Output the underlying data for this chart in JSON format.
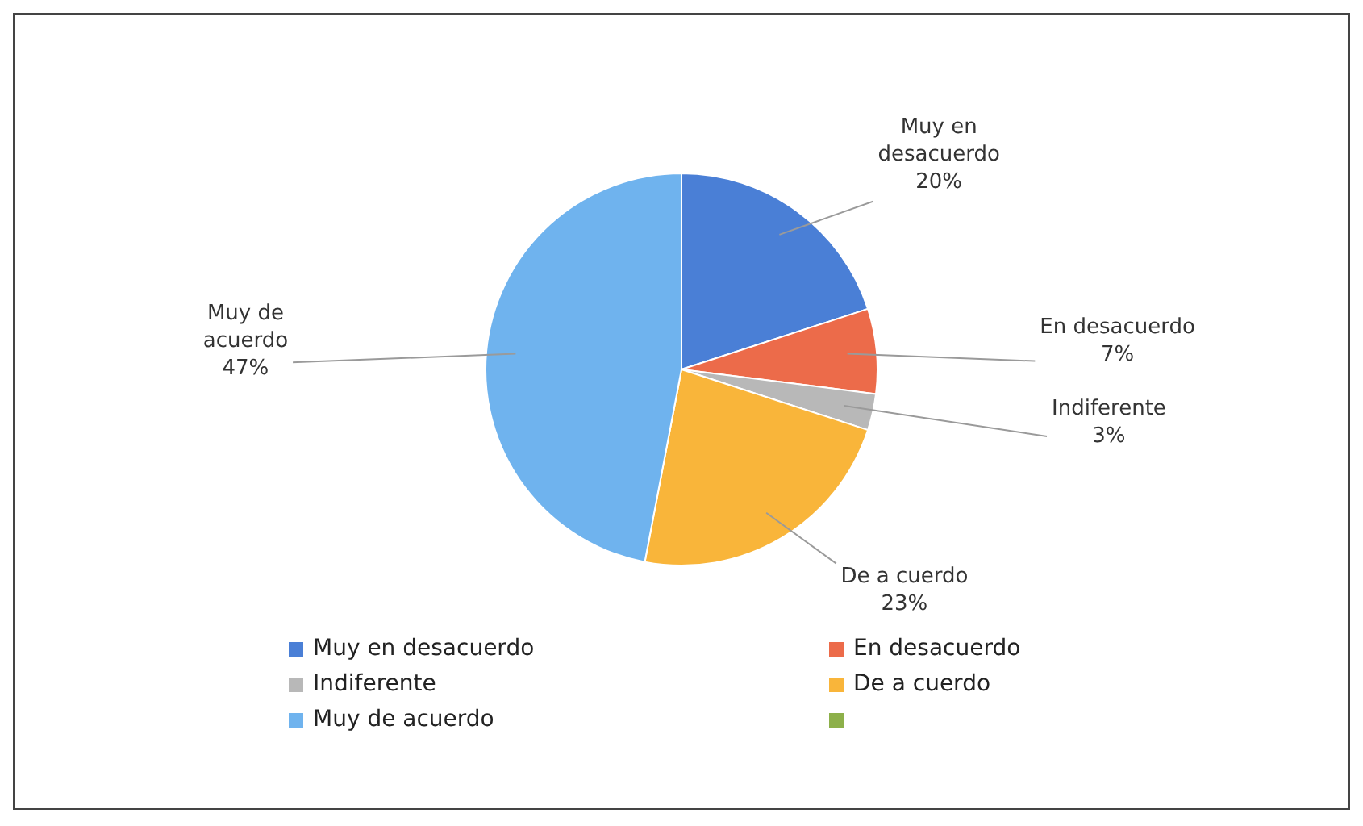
{
  "chart_data": {
    "type": "pie",
    "categories": [
      "Muy en desacuerdo",
      "En desacuerdo",
      "Indiferente",
      "De a cuerdo",
      "Muy de acuerdo",
      null
    ],
    "values": [
      20,
      7,
      3,
      23,
      47,
      0
    ],
    "colors": [
      "#4a7fd6",
      "#ec6b4a",
      "#b8b8b8",
      "#f9b53a",
      "#6fb3ee",
      "#8db04a"
    ],
    "value_labels": [
      "20%",
      "7%",
      "3%",
      "23%",
      "47%",
      null
    ],
    "legend": "bottom"
  }
}
